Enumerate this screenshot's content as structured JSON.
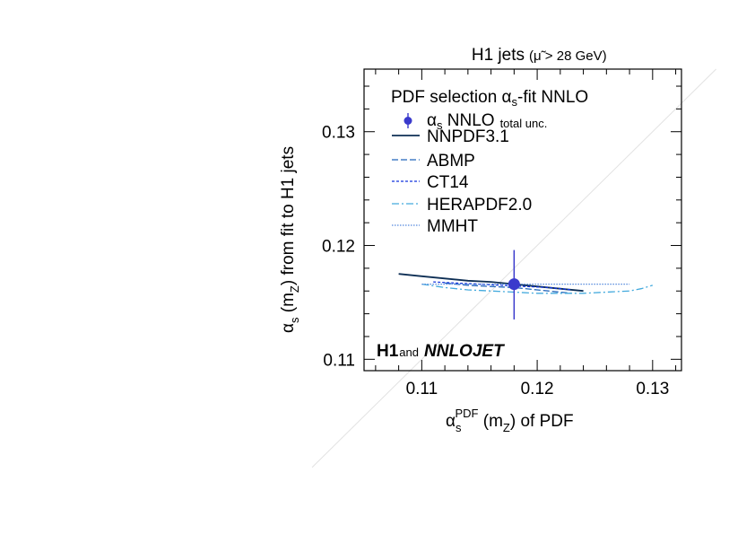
{
  "chart_data": {
    "type": "line",
    "title": "H1 jets",
    "title_note": "(μ̃ > 28 GeV)",
    "xlabel": {
      "alpha": "α",
      "sub_s": "s",
      "sup": "PDF",
      "mid": " (m",
      "sub_z": "Z",
      "end": ") of PDF"
    },
    "ylabel": {
      "alpha": "α",
      "sub_s": "s",
      "mid": " (m",
      "sub_z": "Z",
      "end": ") from fit to H1 jets"
    },
    "xlim": [
      0.105,
      0.1325
    ],
    "ylim": [
      0.109,
      0.1355
    ],
    "xticks": [
      0.11,
      0.12,
      0.13
    ],
    "xtick_labels": [
      "0.11",
      "0.12",
      "0.13"
    ],
    "yticks": [
      0.11,
      0.12,
      0.13
    ],
    "ytick_labels": [
      "0.11",
      "0.12",
      "0.13"
    ],
    "grid": false,
    "diagonal_reference": true,
    "legend": {
      "position": "top-left",
      "header": {
        "pre": "PDF selection α",
        "sub": "s",
        "post": "-fit NNLO"
      },
      "fit_entry": {
        "alpha": "α",
        "sub": "s",
        "main": " NNLO",
        "note": "total unc."
      }
    },
    "fit_point": {
      "x": 0.118,
      "y": 0.1166,
      "yerr_low": 0.0031,
      "yerr_high": 0.003,
      "color": "#3a3acc"
    },
    "series": [
      {
        "name": "NNPDF3.1",
        "color": "#0e2f55",
        "style": "solid",
        "points": [
          [
            0.108,
            0.1175
          ],
          [
            0.11,
            0.1173
          ],
          [
            0.112,
            0.1171
          ],
          [
            0.114,
            0.1169
          ],
          [
            0.116,
            0.1168
          ],
          [
            0.118,
            0.1166
          ],
          [
            0.12,
            0.1164
          ],
          [
            0.122,
            0.1162
          ],
          [
            0.124,
            0.116
          ]
        ]
      },
      {
        "name": "ABMP",
        "color": "#2266bb",
        "style": "dashed",
        "points": [
          [
            0.112,
            0.1167
          ],
          [
            0.114,
            0.1165
          ],
          [
            0.116,
            0.1164
          ],
          [
            0.118,
            0.1163
          ],
          [
            0.12,
            0.1161
          ],
          [
            0.122,
            0.1159
          ],
          [
            0.123,
            0.1158
          ]
        ]
      },
      {
        "name": "CT14",
        "color": "#1133dd",
        "style": "dotted",
        "points": [
          [
            0.111,
            0.1168
          ],
          [
            0.113,
            0.1167
          ],
          [
            0.115,
            0.1166
          ],
          [
            0.117,
            0.1165
          ],
          [
            0.119,
            0.1164
          ],
          [
            0.121,
            0.1163
          ],
          [
            0.123,
            0.1161
          ]
        ]
      },
      {
        "name": "HERAPDF2.0",
        "color": "#44aadd",
        "style": "dashdot",
        "points": [
          [
            0.11,
            0.1166
          ],
          [
            0.112,
            0.1163
          ],
          [
            0.114,
            0.1161
          ],
          [
            0.116,
            0.116
          ],
          [
            0.118,
            0.1159
          ],
          [
            0.12,
            0.1158
          ],
          [
            0.122,
            0.1158
          ],
          [
            0.124,
            0.1158
          ],
          [
            0.126,
            0.1159
          ],
          [
            0.128,
            0.116
          ],
          [
            0.129,
            0.1162
          ],
          [
            0.13,
            0.1165
          ]
        ]
      },
      {
        "name": "MMHT",
        "color": "#5588dd",
        "style": "finedot",
        "points": [
          [
            0.11,
            0.1166
          ],
          [
            0.114,
            0.1166
          ],
          [
            0.118,
            0.1166
          ],
          [
            0.122,
            0.1166
          ],
          [
            0.126,
            0.1166
          ],
          [
            0.128,
            0.1166
          ]
        ]
      }
    ],
    "annotation": {
      "brand1": "H1",
      "and": "and",
      "brand2": "NNLOJET"
    }
  }
}
